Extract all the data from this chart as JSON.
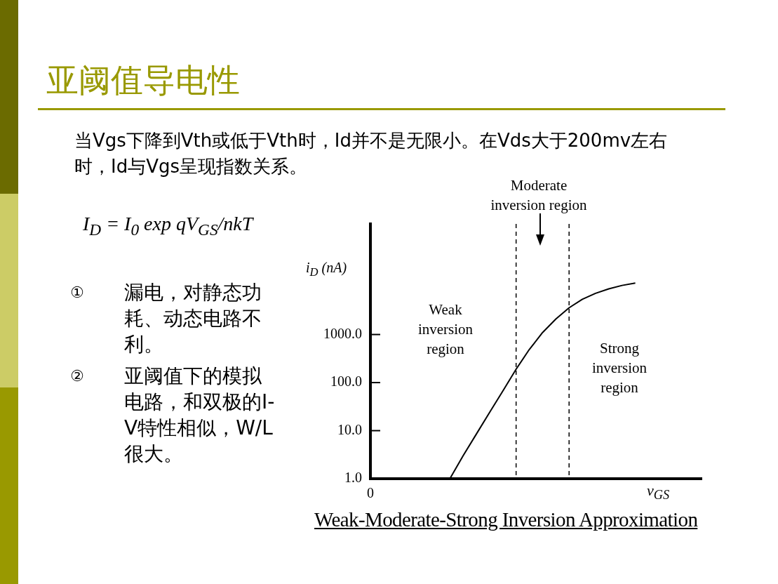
{
  "chart_data": {
    "type": "line",
    "title": "亚阈值导电性",
    "subtitle": "当Vgs下降到Vth或低于Vth时，Id并不是无限小。在Vds大于200mv左右时，Id与Vgs呈现指数关系。",
    "xlabel": "v$_{GS}$",
    "ylabel": "i$_{D}$ (nA)",
    "categories": [
      "0",
      null,
      null,
      null,
      null,
      null,
      null,
      null,
      null,
      null,
      null,
      null,
      null,
      null,
      null,
      null,
      null,
      null,
      null,
      null,
      null,
      null,
      null,
      null,
      null,
      null
    ],
    "series": [
      {
        "color": "#000000",
        "values": [
          null,
          null,
          null,
          null,
          null,
          null,
          1,
          3,
          8.5,
          24,
          67,
          190,
          490,
          1100,
          2100,
          3600,
          5400,
          7200,
          8900,
          10500,
          11800,
          null,
          null,
          null,
          null,
          null
        ]
      }
    ],
    "log": "y",
    "ylim": [
      1,
      200000
    ],
    "yticks": [
      {
        "value": 1,
        "label": "1.0"
      },
      {
        "value": 10,
        "label": "10.0"
      },
      {
        "value": 100,
        "label": "100.0"
      },
      {
        "value": 1000,
        "label": "1000.0"
      }
    ],
    "annotations": [
      "I$_{D}$ = I$_{0}$ exp qV$_{GS}$/nkT",
      "① 漏电，对静态功耗、动态电路不利。",
      "② 亚阈值下的模拟电路，和双极的I-V特性相似，W/L很大。",
      "Moderate\ninversion region",
      "Weak\ninversion\nregion",
      "Strong\ninversion\nregion",
      "Weak-Moderate-Strong Inversion Approximation"
    ],
    "grid": false,
    "legend": false,
    "marker": "none",
    "line_style": "solid"
  }
}
